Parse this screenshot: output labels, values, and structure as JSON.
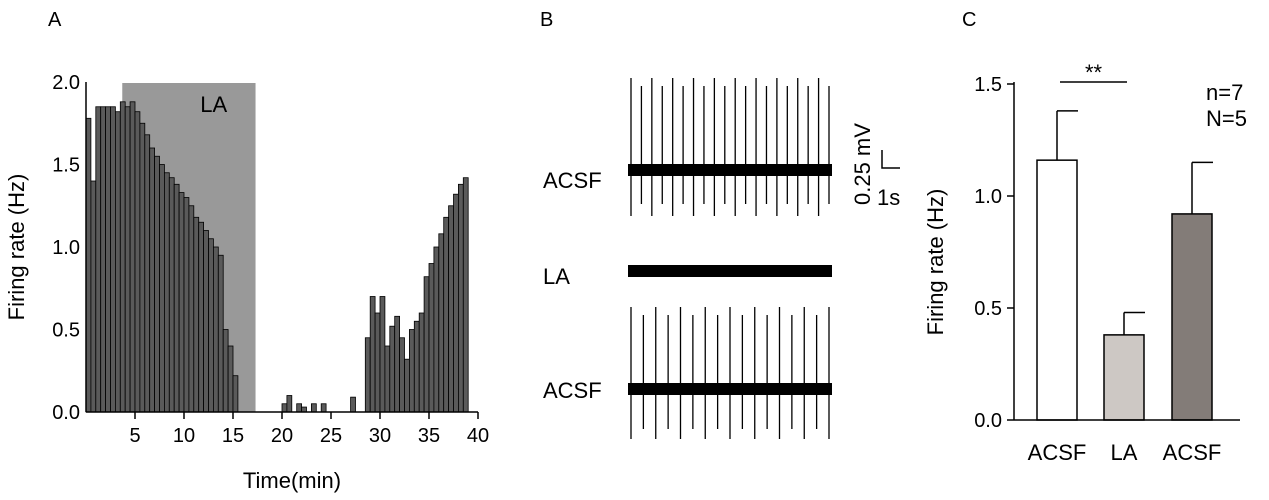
{
  "panels": {
    "a": "A",
    "b": "B",
    "c": "C"
  },
  "chart_data": [
    {
      "type": "bar",
      "panel": "A",
      "xlabel": "Time(min)",
      "ylabel": "Firing rate (Hz)",
      "xlim": [
        0,
        40
      ],
      "ylim": [
        0,
        2.0
      ],
      "xticks": [
        5,
        10,
        15,
        20,
        25,
        30,
        35,
        40
      ],
      "yticks": [
        0.0,
        0.5,
        1.0,
        1.5,
        2.0
      ],
      "ytick_labels": [
        "0.0",
        "0.5",
        "1.0",
        "1.5",
        "2.0"
      ],
      "bin_width": 0.5,
      "shaded_region": {
        "label": "LA",
        "x": [
          3.7,
          17.3
        ],
        "color": "#999999"
      },
      "x": [
        0.5,
        1.0,
        1.5,
        2.0,
        2.5,
        3.0,
        3.5,
        4.0,
        4.5,
        5.0,
        5.5,
        6.0,
        6.5,
        7.0,
        7.5,
        8.0,
        8.5,
        9.0,
        9.5,
        10.0,
        10.5,
        11.0,
        11.5,
        12.0,
        12.5,
        13.0,
        13.5,
        14.0,
        14.5,
        15.0,
        15.5,
        20.5,
        21.0,
        22.0,
        22.5,
        23.5,
        24.5,
        27.5,
        29.0,
        29.5,
        30.0,
        30.5,
        31.0,
        31.5,
        32.0,
        32.5,
        33.0,
        33.5,
        34.0,
        34.5,
        35.0,
        35.5,
        36.0,
        36.5,
        37.0,
        37.5,
        38.0,
        38.5,
        39.0
      ],
      "values": [
        1.78,
        1.4,
        1.85,
        1.85,
        1.85,
        1.85,
        1.82,
        1.88,
        1.85,
        1.88,
        1.82,
        1.75,
        1.68,
        1.6,
        1.55,
        1.5,
        1.45,
        1.42,
        1.38,
        1.33,
        1.3,
        1.25,
        1.18,
        1.15,
        1.1,
        1.05,
        1.0,
        0.95,
        0.5,
        0.4,
        0.22,
        0.05,
        0.1,
        0.05,
        0.03,
        0.05,
        0.05,
        0.09,
        0.45,
        0.7,
        0.6,
        0.7,
        0.4,
        0.52,
        0.58,
        0.45,
        0.32,
        0.5,
        0.55,
        0.6,
        0.82,
        0.9,
        1.0,
        1.08,
        1.18,
        1.25,
        1.32,
        1.38,
        1.42
      ],
      "bar_color": "#5a5a5a"
    },
    {
      "type": "trace",
      "panel": "B",
      "traces": [
        {
          "label": "ACSF",
          "spikes": 20
        },
        {
          "label": "LA",
          "spikes": 0
        },
        {
          "label": "ACSF",
          "spikes": 17
        }
      ],
      "scale_bar": {
        "voltage": "0.25 mV",
        "time": "1s"
      }
    },
    {
      "type": "bar",
      "panel": "C",
      "categories": [
        "ACSF",
        "LA",
        "ACSF"
      ],
      "values": [
        1.16,
        0.38,
        0.92
      ],
      "errors": [
        0.22,
        0.1,
        0.23
      ],
      "colors": [
        "#ffffff",
        "#cdc8c4",
        "#837c78"
      ],
      "ylabel": "Firing rate (Hz)",
      "ylim": [
        0,
        1.5
      ],
      "yticks": [
        0.0,
        0.5,
        1.0,
        1.5
      ],
      "ytick_labels": [
        "0.0",
        "0.5",
        "1.0",
        "1.5"
      ],
      "significance": {
        "label": "**",
        "between": [
          0,
          1
        ]
      },
      "annotations": [
        "n=7",
        "N=5"
      ]
    }
  ]
}
